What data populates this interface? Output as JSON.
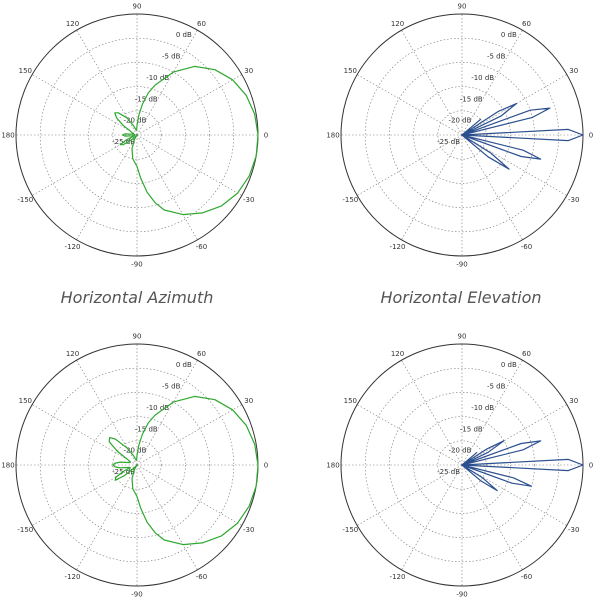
{
  "captions": [
    "Horizontal Azimuth",
    "Horizontal Elevation"
  ],
  "chart_data": [
    {
      "type": "polar-line",
      "angle_ticks": [
        "90",
        "60",
        "30",
        "0",
        "-30",
        "-60",
        "-90",
        "-120",
        "-150",
        "180",
        "150",
        "120"
      ],
      "radial_labels": [
        "0 dB",
        "-5 dB",
        "-10 dB",
        "-15 dB",
        "-20 dB",
        "-25 dB"
      ],
      "rlim": [
        -25,
        0
      ],
      "grid": true,
      "series": [
        {
          "color": "#2fa82f",
          "angle_deg": [
            0,
            10,
            20,
            30,
            40,
            50,
            60,
            70,
            75,
            80,
            85,
            90,
            95,
            100,
            110,
            120,
            130,
            135,
            140,
            145,
            150,
            160,
            165,
            170,
            175,
            180,
            185,
            190,
            195,
            200,
            205,
            210,
            215,
            220,
            225,
            230,
            240,
            250,
            260,
            270,
            275,
            280,
            285,
            290,
            300,
            310,
            320,
            330,
            340,
            350,
            360
          ],
          "db": [
            0,
            -0.3,
            -1,
            -2.2,
            -4,
            -6.5,
            -10,
            -14,
            -16,
            -18.5,
            -21,
            -23,
            -24,
            -24,
            -23,
            -21,
            -19,
            -18.5,
            -19.5,
            -21.5,
            -23.5,
            -24,
            -24.5,
            -24,
            -22.5,
            -22,
            -22.5,
            -24,
            -24.5,
            -24,
            -22.5,
            -21,
            -21.5,
            -23,
            -24.5,
            -25,
            -24,
            -22,
            -20,
            -18.5,
            -16,
            -13,
            -10.5,
            -8.5,
            -6,
            -4,
            -2.2,
            -1,
            -0.3,
            0,
            0
          ]
        }
      ]
    },
    {
      "type": "polar-line",
      "angle_ticks": [
        "90",
        "60",
        "30",
        "0",
        "-30",
        "-60",
        "-90",
        "-120",
        "-150",
        "180",
        "150",
        "120"
      ],
      "radial_labels": [
        "0 dB",
        "-5 dB",
        "-10 dB",
        "-15 dB",
        "-20 dB",
        "-25 dB"
      ],
      "rlim": [
        -25,
        0
      ],
      "grid": true,
      "series": [
        {
          "color": "#2b4f8f",
          "angle_deg": [
            -180,
            -90,
            -45,
            -40,
            -36,
            -32,
            -28,
            -24,
            -20,
            -17,
            -14,
            -10,
            -6,
            -3,
            0,
            3,
            6,
            10,
            14,
            17,
            20,
            23,
            26,
            30,
            33,
            36,
            40,
            45,
            90,
            180
          ],
          "db": [
            -25,
            -25,
            -25,
            -18,
            -13,
            -18,
            -25,
            -25,
            -12,
            -8,
            -12,
            -25,
            -25,
            -3,
            0,
            -3,
            -25,
            -25,
            -10,
            -6,
            -10,
            -25,
            -16,
            -12,
            -16,
            -25,
            -20,
            -25,
            -25,
            -25
          ]
        }
      ]
    },
    {
      "type": "polar-line",
      "angle_ticks": [
        "90",
        "60",
        "30",
        "0",
        "-30",
        "-60",
        "-90",
        "-120",
        "-150",
        "180",
        "150",
        "120"
      ],
      "radial_labels": [
        "0 dB",
        "-5 dB",
        "-10 dB",
        "-15 dB",
        "-20 dB",
        "-25 dB"
      ],
      "rlim": [
        -25,
        0
      ],
      "grid": true,
      "series": [
        {
          "color": "#2fa82f",
          "angle_deg": [
            0,
            10,
            20,
            30,
            40,
            50,
            60,
            70,
            75,
            80,
            85,
            90,
            95,
            100,
            110,
            120,
            130,
            135,
            140,
            145,
            150,
            160,
            165,
            170,
            175,
            180,
            185,
            190,
            195,
            200,
            205,
            210,
            215,
            220,
            225,
            230,
            240,
            250,
            260,
            270,
            275,
            280,
            285,
            290,
            300,
            310,
            320,
            330,
            340,
            350,
            360
          ],
          "db": [
            0,
            -0.3,
            -1,
            -2.2,
            -4,
            -6.5,
            -10,
            -14,
            -16,
            -18.5,
            -21,
            -23,
            -24,
            -24,
            -23,
            -21,
            -18,
            -17,
            -17.5,
            -20,
            -23,
            -23.5,
            -23,
            -21.5,
            -20.5,
            -20,
            -20.5,
            -21.5,
            -23,
            -23.5,
            -22,
            -20,
            -19.5,
            -21.5,
            -24,
            -25,
            -24,
            -22,
            -20,
            -18.5,
            -16,
            -13,
            -10.5,
            -8.5,
            -6,
            -4,
            -2.2,
            -1,
            -0.3,
            0,
            0
          ]
        }
      ]
    },
    {
      "type": "polar-line",
      "angle_ticks": [
        "90",
        "60",
        "30",
        "0",
        "-30",
        "-60",
        "-90",
        "-120",
        "-150",
        "180",
        "150",
        "120"
      ],
      "radial_labels": [
        "0 dB",
        "-5 dB",
        "-10 dB",
        "-15 dB",
        "-20 dB",
        "-25 dB"
      ],
      "rlim": [
        -25,
        0
      ],
      "grid": true,
      "series": [
        {
          "color": "#2b4f8f",
          "angle_deg": [
            -180,
            -90,
            -45,
            -40,
            -36,
            -32,
            -28,
            -24,
            -20,
            -17,
            -14,
            -10,
            -6,
            -3,
            0,
            3,
            6,
            10,
            14,
            17,
            20,
            23,
            26,
            30,
            33,
            36,
            40,
            45,
            90,
            180
          ],
          "db": [
            -25,
            -25,
            -25,
            -20,
            -16,
            -20,
            -25,
            -25,
            -14,
            -10,
            -14,
            -25,
            -25,
            -3,
            0,
            -3,
            -25,
            -25,
            -12,
            -8,
            -12,
            -25,
            -19,
            -15,
            -19,
            -25,
            -21,
            -25,
            -25,
            -25
          ]
        }
      ]
    }
  ]
}
